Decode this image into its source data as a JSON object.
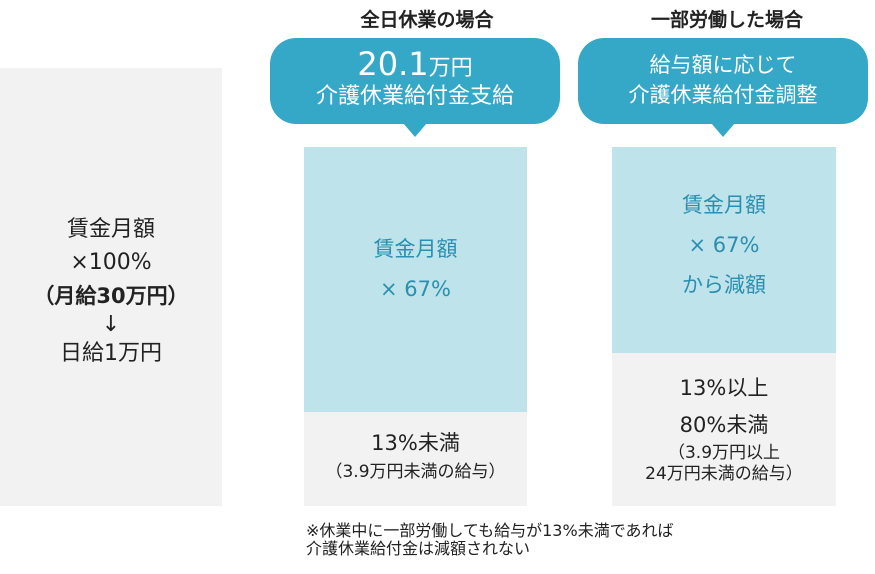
{
  "left": {
    "line1": "賃金月額",
    "line2": "×100%",
    "line3": "（月給30万円）",
    "arrow": "↓",
    "line4": "日給1万円"
  },
  "full_leave": {
    "title": "全日休業の場合",
    "bubble_amount": "20.1",
    "bubble_unit": "万円",
    "bubble_line2": "介護休業給付金支給",
    "blue_line1": "賃金月額",
    "blue_line2": "× 67%",
    "gray_line1": "13%未満",
    "gray_line2": "（3.9万円未満の給与）"
  },
  "partial_work": {
    "title": "一部労働した場合",
    "bubble_line1": "給与額に応じて",
    "bubble_line2": "介護休業給付金調整",
    "blue_line1": "賃金月額",
    "blue_line2": "× 67%",
    "blue_line3": "から減額",
    "gray_line1": "13%以上",
    "gray_line2": "80%未満",
    "gray_line3": "（3.9万円以上",
    "gray_line4": "24万円未満の給与）"
  },
  "footnote": {
    "line1": "※休業中に一部労働しても給与が13%未満であれば",
    "line2": "介護休業給付金は減額されない"
  },
  "colors": {
    "bubble": "#35a8c7",
    "blue_box": "#bfe3ea",
    "blue_text": "#2a8fb0",
    "gray_box": "#f2f2f2"
  }
}
